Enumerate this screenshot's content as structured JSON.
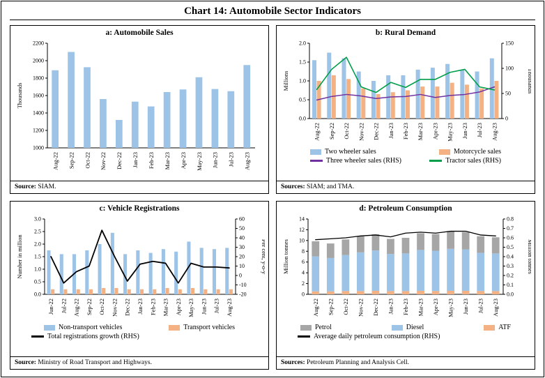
{
  "page_title": "Chart 14: Automobile Sector Indicators",
  "panels": {
    "a": {
      "title": "a: Automobile Sales",
      "source_label": "Source:",
      "source_text": " SIAM."
    },
    "b": {
      "title": "b: Rural Demand",
      "legend": [
        {
          "label": "Two wheeler sales",
          "color": "#9DC3E6",
          "shape": "bar"
        },
        {
          "label": "Motorcycle sales",
          "color": "#F4B183",
          "shape": "bar"
        },
        {
          "label": "Three wheeler sales (RHS)",
          "color": "#7030A0",
          "shape": "line"
        },
        {
          "label": "Tractor sales (RHS)",
          "color": "#009E49",
          "shape": "line"
        }
      ],
      "source_label": "Sources:",
      "source_text": " SIAM; and TMA."
    },
    "c": {
      "title": "c: Vehicle Registrations",
      "legend": [
        {
          "label": "Non-transport vehicles",
          "color": "#9DC3E6",
          "shape": "bar"
        },
        {
          "label": "Transport vehicles",
          "color": "#F4B183",
          "shape": "bar"
        },
        {
          "label": "Total registrations growth (RHS)",
          "color": "#000000",
          "shape": "line"
        }
      ],
      "source_label": "Source:",
      "source_text": " Ministry of Road Transport and Highways."
    },
    "d": {
      "title": "d: Petroleum Consumption",
      "legend": [
        {
          "label": "Petrol",
          "color": "#A6A6A6",
          "shape": "bar"
        },
        {
          "label": "Diesel",
          "color": "#9DC3E6",
          "shape": "bar"
        },
        {
          "label": "ATF",
          "color": "#F4B183",
          "shape": "bar"
        },
        {
          "label": "Average daily petroleum consumption (RHS)",
          "color": "#000000",
          "shape": "line"
        }
      ],
      "source_label": "Sources:",
      "source_text": " Petroleum Planning and Analysis Cell."
    }
  },
  "chart_data": [
    {
      "type": "bar",
      "title": "a: Automobile Sales",
      "categories": [
        "Aug-22",
        "Sep-22",
        "Oct-22",
        "Nov-22",
        "Dec-22",
        "Jan-23",
        "Feb-23",
        "Mar-23",
        "Apr-23",
        "May-23",
        "Jun-23",
        "Jul-23",
        "Aug-23"
      ],
      "left_axis": {
        "label": "Thousands",
        "min": 1000,
        "max": 2200,
        "step": 200,
        "dec": 0
      },
      "series": [
        {
          "name": "Automobile sales",
          "kind": "bar",
          "axis": "left",
          "color": "#9DC3E6",
          "values": [
            1890,
            2100,
            1925,
            1560,
            1320,
            1530,
            1475,
            1640,
            1670,
            1810,
            1675,
            1650,
            1950
          ]
        }
      ],
      "pad": {
        "l": 48,
        "r": 14,
        "t": 8,
        "b": 40
      },
      "grid": false
    },
    {
      "type": "combo",
      "title": "b: Rural Demand",
      "categories": [
        "Aug-22",
        "Sep-22",
        "Oct-22",
        "Nov-22",
        "Dec-22",
        "Jan-23",
        "Feb-23",
        "Mar-23",
        "Apr-23",
        "May-23",
        "Jun-23",
        "Jul-23",
        "Aug-23"
      ],
      "left_axis": {
        "label": "Millions",
        "min": 0,
        "max": 2.0,
        "step": 0.5,
        "dec": 1
      },
      "right_axis": {
        "label": "Thousands",
        "min": 0,
        "max": 150,
        "step": 50,
        "dec": 0
      },
      "series": [
        {
          "name": "Two wheeler sales",
          "kind": "bar",
          "axis": "left",
          "color": "#9DC3E6",
          "values": [
            1.55,
            1.75,
            1.6,
            1.25,
            1.0,
            1.15,
            1.15,
            1.3,
            1.35,
            1.45,
            1.3,
            1.25,
            1.6
          ]
        },
        {
          "name": "Motorcycle sales",
          "kind": "bar",
          "axis": "left",
          "color": "#F4B183",
          "values": [
            1.0,
            1.15,
            1.05,
            0.8,
            0.65,
            0.7,
            0.75,
            0.85,
            0.85,
            0.95,
            0.9,
            0.8,
            1.0
          ]
        },
        {
          "name": "Three wheeler sales (RHS)",
          "kind": "line",
          "axis": "right",
          "color": "#7030A0",
          "width": 1.5,
          "values": [
            37,
            44,
            48,
            45,
            40,
            43,
            44,
            48,
            42,
            46,
            48,
            53,
            63
          ]
        },
        {
          "name": "Tractor sales (RHS)",
          "kind": "line",
          "axis": "right",
          "color": "#009E49",
          "width": 1.6,
          "values": [
            58,
            98,
            122,
            63,
            52,
            72,
            62,
            78,
            78,
            92,
            98,
            63,
            57
          ]
        }
      ],
      "pad": {
        "l": 42,
        "r": 42,
        "t": 8,
        "b": 40
      },
      "grid": false
    },
    {
      "type": "combo",
      "title": "c: Vehicle Registrations",
      "categories": [
        "Jun-22",
        "Jul-22",
        "Aug-22",
        "Sep-22",
        "Oct-22",
        "Nov-22",
        "Dec-22",
        "Jan-23",
        "Feb-23",
        "Mar-23",
        "Apr-23",
        "May-23",
        "Jun-23",
        "Jul-23",
        "Aug-23"
      ],
      "left_axis": {
        "label": "Number in million",
        "min": 0,
        "max": 3.0,
        "step": 0.5,
        "dec": 1
      },
      "right_axis": {
        "label": "Per cent, y-o-y",
        "min": -20,
        "max": 60,
        "step": 10,
        "dec": 0
      },
      "series": [
        {
          "name": "Non-transport vehicles",
          "kind": "bar",
          "axis": "left",
          "color": "#9DC3E6",
          "values": [
            1.75,
            1.6,
            1.6,
            1.75,
            2.0,
            2.45,
            1.6,
            1.75,
            1.65,
            1.8,
            1.7,
            2.1,
            1.85,
            1.8,
            1.85
          ]
        },
        {
          "name": "Transport vehicles",
          "kind": "bar",
          "axis": "left",
          "color": "#F4B183",
          "values": [
            0.2,
            0.2,
            0.2,
            0.2,
            0.25,
            0.25,
            0.2,
            0.2,
            0.2,
            0.25,
            0.2,
            0.25,
            0.2,
            0.2,
            0.2
          ]
        },
        {
          "name": "Total registrations growth (RHS)",
          "kind": "line",
          "axis": "right",
          "color": "#000000",
          "width": 1.8,
          "values": [
            20,
            -8,
            4,
            10,
            48,
            20,
            -6,
            12,
            15,
            13,
            -8,
            13,
            9,
            9,
            8
          ]
        }
      ],
      "pad": {
        "l": 44,
        "r": 42,
        "t": 8,
        "b": 40
      },
      "grid": false
    },
    {
      "type": "combo",
      "title": "d: Petroleum Consumption",
      "stacked": true,
      "categories": [
        "Aug-22",
        "Sep-22",
        "Oct-22",
        "Nov-22",
        "Dec-22",
        "Jan-23",
        "Feb-23",
        "Mar-23",
        "Apr-23",
        "May-23",
        "Jun-23",
        "Jul-23",
        "Aug-23"
      ],
      "left_axis": {
        "label": "Million tonnes",
        "min": 0,
        "max": 14,
        "step": 2,
        "dec": 0
      },
      "right_axis": {
        "label": "Million tonnes",
        "min": 0,
        "max": 0.8,
        "step": 0.1,
        "dec": 1
      },
      "series": [
        {
          "name": "ATF",
          "kind": "bar",
          "axis": "left",
          "color": "#F4B183",
          "values": [
            0.55,
            0.55,
            0.6,
            0.6,
            0.65,
            0.6,
            0.6,
            0.65,
            0.6,
            0.65,
            0.65,
            0.6,
            0.6
          ]
        },
        {
          "name": "Diesel",
          "kind": "bar",
          "axis": "left",
          "color": "#9DC3E6",
          "values": [
            6.5,
            6.2,
            6.7,
            7.2,
            7.5,
            6.9,
            7.0,
            7.6,
            7.5,
            7.8,
            7.7,
            7.1,
            7.0
          ]
        },
        {
          "name": "Petrol",
          "kind": "bar",
          "axis": "left",
          "color": "#A6A6A6",
          "values": [
            2.8,
            2.7,
            2.9,
            3.0,
            3.0,
            2.8,
            2.9,
            3.1,
            3.1,
            3.3,
            3.2,
            3.1,
            3.0
          ]
        },
        {
          "name": "Average daily petroleum consumption (RHS)",
          "kind": "line",
          "axis": "right",
          "color": "#000000",
          "width": 1.3,
          "values": [
            0.58,
            0.59,
            0.6,
            0.62,
            0.63,
            0.61,
            0.65,
            0.66,
            0.65,
            0.67,
            0.67,
            0.63,
            0.62
          ]
        }
      ],
      "pad": {
        "l": 40,
        "r": 40,
        "t": 8,
        "b": 40
      },
      "grid": false
    }
  ]
}
